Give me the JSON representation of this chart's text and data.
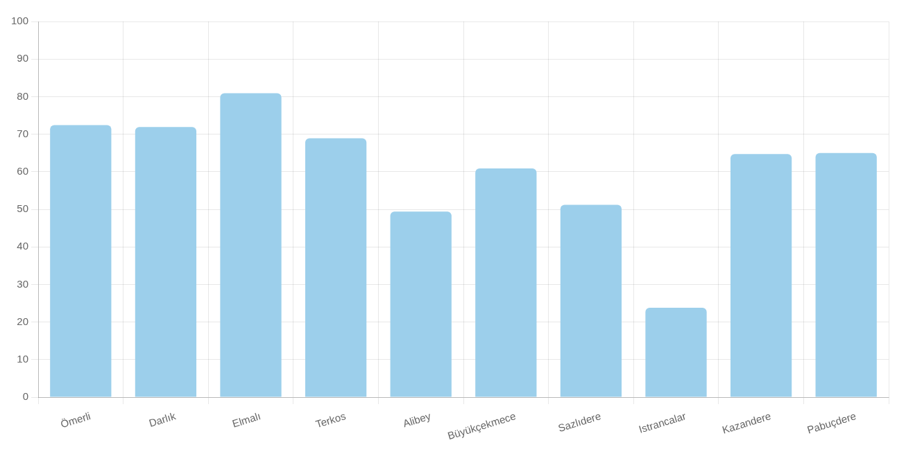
{
  "chart_data": {
    "type": "bar",
    "categories": [
      "Ömerli",
      "Darlık",
      "Elmalı",
      "Terkos",
      "Alibey",
      "Büyükçekmece",
      "Sazlıdere",
      "Istrancalar",
      "Kazandere",
      "Pabuçdere"
    ],
    "values": [
      72.4,
      71.9,
      80.9,
      68.9,
      49.4,
      60.9,
      51.2,
      23.8,
      64.7,
      65.0
    ],
    "color": "#9ccfeb",
    "ylim": [
      0,
      100
    ],
    "yticks": [
      0,
      10,
      20,
      30,
      40,
      50,
      60,
      70,
      80,
      90,
      100
    ],
    "grid": true
  }
}
